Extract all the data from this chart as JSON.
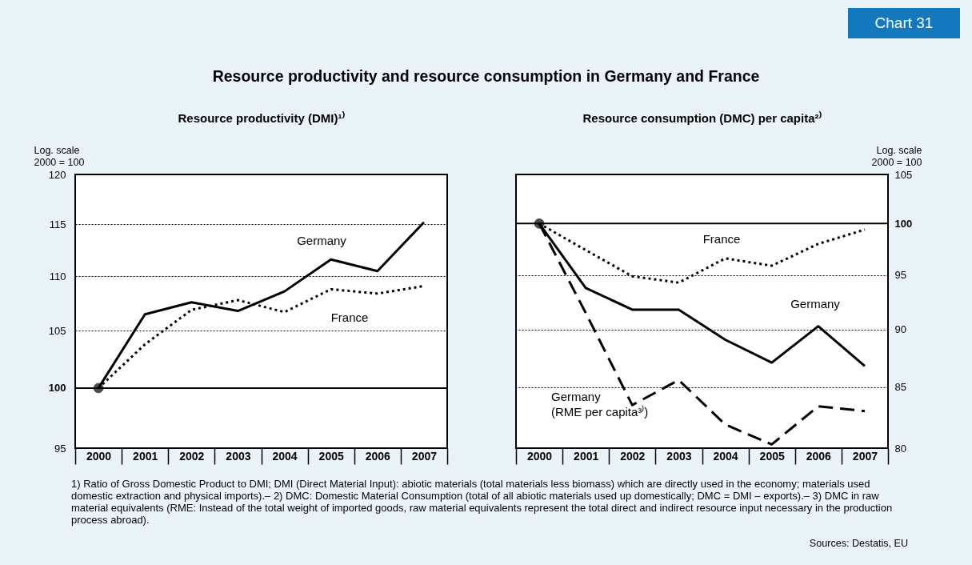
{
  "chart_data": [
    {
      "type": "line",
      "title": "Resource productivity (DMI)¹⁾",
      "ylabel": "Log. scale\n2000 = 100",
      "categories": [
        "2000",
        "2001",
        "2002",
        "2003",
        "2004",
        "2005",
        "2006",
        "2007"
      ],
      "series": [
        {
          "name": "Germany",
          "color": "#000000",
          "line_style": "solid",
          "values": [
            100,
            106.5,
            107.6,
            106.8,
            108.6,
            111.6,
            110.5,
            115.2
          ]
        },
        {
          "name": "France",
          "color": "#000000",
          "line_style": "dotted",
          "values": [
            100,
            103.8,
            106.9,
            107.8,
            106.7,
            108.8,
            108.4,
            109.1
          ]
        },
        {
          "type": "scatter",
          "color": "#000000",
          "marker": "circle",
          "values": [
            100,
            null,
            null,
            null,
            null,
            null,
            null,
            null
          ]
        }
      ],
      "log": true,
      "ylim": [
        95,
        120
      ],
      "yticks": [
        95,
        100,
        105,
        110,
        115,
        120
      ],
      "grid": "y",
      "legend": false,
      "ref_lines": [
        {
          "axis": "y",
          "value": 100,
          "color": "#000000"
        }
      ],
      "annotations": [
        "Chart 31",
        "Resource productivity and resource consumption in Germany and France",
        "1) Ratio of Gross Domestic Product to DMI; DMI (Direct Material Input): abiotic materials (total materials less biomass) which are directly used in the economy; materials used domestic extraction and physical imports).– 2) DMC: Domestic Material Consumption (total of all abiotic materials used up domestically; DMC = DMI – exports).– 3) DMC in raw material equivalents (RME: Instead of the total weight of imported goods, raw material equivalents represent the total direct and indirect resource input necessary in the production process abroad).",
        "Sources: Destatis, EU"
      ]
    },
    {
      "type": "line",
      "title": "Resource consumption (DMC) per capita²⁾",
      "y2label": "Log. scale\n2000 = 100",
      "categories": [
        "2000",
        "2001",
        "2002",
        "2003",
        "2004",
        "2005",
        "2006",
        "2007"
      ],
      "series": [
        {
          "name": "France",
          "color": "#000000",
          "line_style": "dotted",
          "axis": "y2",
          "values": [
            100,
            97.4,
            94.9,
            94.3,
            96.6,
            95.9,
            98.0,
            99.4
          ]
        },
        {
          "name": "Germany",
          "color": "#000000",
          "line_style": "solid",
          "axis": "y2",
          "values": [
            100,
            93.8,
            91.8,
            91.8,
            89.1,
            87.1,
            90.3,
            86.8
          ]
        },
        {
          "name": "Germany\n(RME per capita³⁾)",
          "color": "#000000",
          "line_style": "dashed",
          "axis": "y2",
          "values": [
            100,
            91.5,
            83.5,
            85.6,
            81.9,
            80.3,
            83.4,
            83.0
          ]
        },
        {
          "type": "scatter",
          "color": "#000000",
          "marker": "circle",
          "axis": "y2",
          "values": [
            100,
            null,
            null,
            null,
            null,
            null,
            null,
            null
          ]
        }
      ],
      "log": "y2",
      "y2lim": [
        80,
        105
      ],
      "y2ticks": [
        80,
        85,
        90,
        95,
        100,
        105
      ],
      "grid": "y",
      "legend": false,
      "ref_lines": [
        {
          "axis": "y2",
          "value": 100,
          "color": "#000000"
        }
      ]
    }
  ]
}
